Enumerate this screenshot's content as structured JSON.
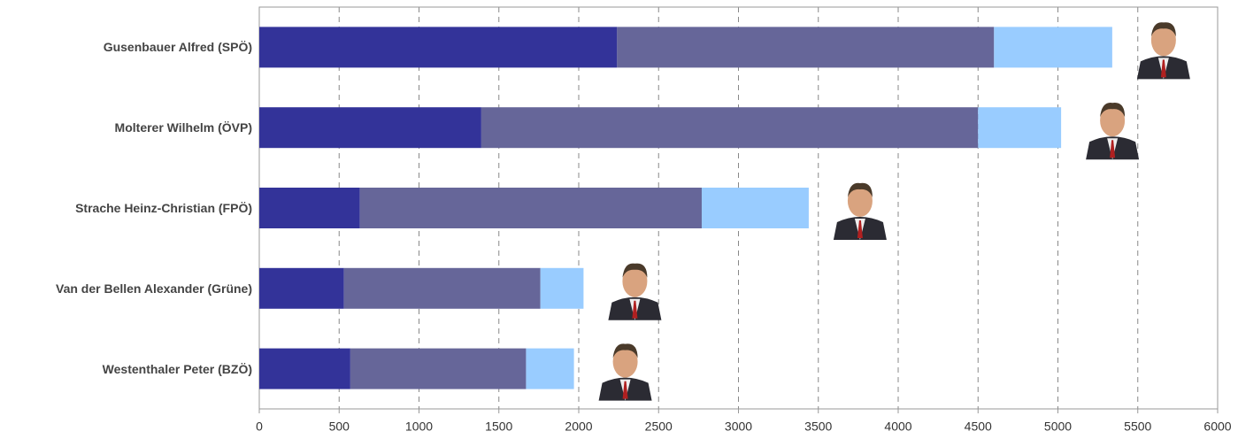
{
  "chart_data": {
    "type": "stacked-barh",
    "categories": [
      "Gusenbauer Alfred (SPÖ)",
      "Molterer Wilhelm (ÖVP)",
      "Strache Heinz-Christian (FPÖ)",
      "Van der Bellen Alexander (Grüne)",
      "Westenthaler Peter (BZÖ)"
    ],
    "series": [
      {
        "color": "#333399",
        "values": [
          2240,
          1390,
          630,
          530,
          570
        ]
      },
      {
        "color": "#666699",
        "values": [
          2360,
          3110,
          2140,
          1230,
          1100
        ]
      },
      {
        "color": "#99ccff",
        "values": [
          740,
          520,
          670,
          270,
          300
        ]
      }
    ],
    "xlim": [
      0,
      6000
    ],
    "xticks": [
      0,
      500,
      1000,
      1500,
      2000,
      2500,
      3000,
      3500,
      4000,
      4500,
      5000,
      5500,
      6000
    ],
    "grid": true
  }
}
